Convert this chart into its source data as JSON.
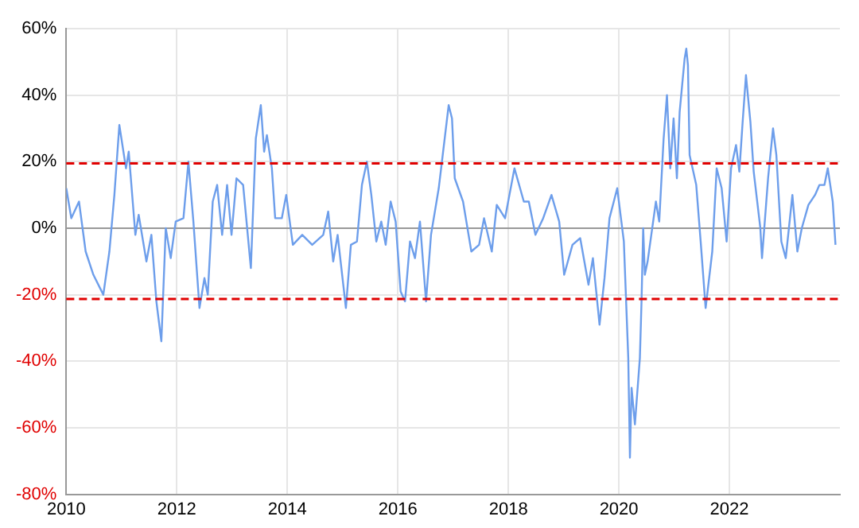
{
  "chart_data": {
    "type": "line",
    "x": [
      2010.0,
      2010.09,
      2010.23,
      2010.35,
      2010.49,
      2010.67,
      2010.78,
      2010.87,
      2010.96,
      2011.08,
      2011.13,
      2011.25,
      2011.31,
      2011.45,
      2011.54,
      2011.63,
      2011.72,
      2011.8,
      2011.89,
      2011.98,
      2012.12,
      2012.21,
      2012.3,
      2012.41,
      2012.5,
      2012.56,
      2012.65,
      2012.73,
      2012.82,
      2012.91,
      2012.99,
      2013.08,
      2013.2,
      2013.34,
      2013.43,
      2013.52,
      2013.58,
      2013.63,
      2013.72,
      2013.78,
      2013.9,
      2013.98,
      2014.1,
      2014.27,
      2014.45,
      2014.65,
      2014.74,
      2014.83,
      2014.91,
      2015.06,
      2015.15,
      2015.26,
      2015.35,
      2015.44,
      2015.52,
      2015.61,
      2015.7,
      2015.78,
      2015.87,
      2015.96,
      2016.05,
      2016.13,
      2016.22,
      2016.31,
      2016.4,
      2016.51,
      2016.6,
      2016.74,
      2016.92,
      2016.98,
      2017.03,
      2017.18,
      2017.33,
      2017.47,
      2017.56,
      2017.7,
      2017.79,
      2017.94,
      2018.11,
      2018.28,
      2018.37,
      2018.49,
      2018.63,
      2018.78,
      2018.92,
      2019.01,
      2019.16,
      2019.3,
      2019.45,
      2019.53,
      2019.65,
      2019.74,
      2019.83,
      2019.97,
      2020.09,
      2020.17,
      2020.2,
      2020.23,
      2020.29,
      2020.38,
      2020.41,
      2020.44,
      2020.47,
      2020.52,
      2020.67,
      2020.73,
      2020.81,
      2020.87,
      2020.93,
      2020.99,
      2021.05,
      2021.1,
      2021.19,
      2021.22,
      2021.25,
      2021.28,
      2021.4,
      2021.48,
      2021.57,
      2021.69,
      2021.77,
      2021.86,
      2021.95,
      2022.03,
      2022.12,
      2022.18,
      2022.24,
      2022.3,
      2022.38,
      2022.44,
      2022.56,
      2022.59,
      2022.7,
      2022.79,
      2022.85,
      2022.94,
      2023.02,
      2023.14,
      2023.23,
      2023.31,
      2023.43,
      2023.55,
      2023.63,
      2023.72,
      2023.78,
      2023.87,
      2023.92
    ],
    "series": [
      {
        "color": "#6d9eeb",
        "values": [
          12,
          3,
          8,
          -7,
          -14,
          -20,
          -7,
          10,
          31,
          18,
          23,
          -2,
          4,
          -10,
          -2,
          -22,
          -34,
          0,
          -9,
          2,
          3,
          20,
          2,
          -24,
          -15,
          -20,
          8,
          13,
          -2,
          13,
          -2,
          15,
          13,
          -12,
          27,
          37,
          23,
          28,
          18,
          3,
          3,
          10,
          -5,
          -2,
          -5,
          -2,
          5,
          -10,
          -2,
          -24,
          -5,
          -4,
          13,
          20,
          10,
          -4,
          2,
          -5,
          8,
          2,
          -19,
          -22,
          -4,
          -9,
          2,
          -22,
          -2,
          12,
          37,
          33,
          15,
          8,
          -7,
          -5,
          3,
          -7,
          7,
          3,
          18,
          8,
          8,
          -2,
          3,
          10,
          2,
          -14,
          -5,
          -3,
          -17,
          -9,
          -29,
          -15,
          3,
          12,
          -4,
          -39,
          -69,
          -48,
          -59,
          -39,
          -22,
          0,
          -14,
          -10,
          8,
          2,
          27,
          40,
          18,
          33,
          15,
          35,
          51,
          54,
          49,
          22,
          13,
          -4,
          -24,
          -7,
          18,
          12,
          -4,
          18,
          25,
          17,
          32,
          46,
          32,
          17,
          0,
          -9,
          15,
          30,
          22,
          -4,
          -9,
          10,
          -7,
          0,
          7,
          10,
          13,
          13,
          18,
          8,
          -5
        ]
      }
    ],
    "xlim": [
      2010,
      2024
    ],
    "xticks": [
      2010,
      2012,
      2014,
      2016,
      2018,
      2020,
      2022
    ],
    "ylim": [
      -80,
      60
    ],
    "yticks": [
      {
        "value": -80,
        "label": "-80%"
      },
      {
        "value": -60,
        "label": "-60%"
      },
      {
        "value": -40,
        "label": "-40%"
      },
      {
        "value": -20,
        "label": "-20%"
      },
      {
        "value": 0,
        "label": "0%"
      },
      {
        "value": 20,
        "label": "20%"
      },
      {
        "value": 40,
        "label": "40%"
      },
      {
        "value": 60,
        "label": "60%"
      }
    ],
    "ref_lines": [
      {
        "axis": "y",
        "value": 19.5,
        "color": "#e00000",
        "line_style": "dashed"
      },
      {
        "axis": "y",
        "value": -21.3,
        "color": "#e00000",
        "line_style": "dashed"
      }
    ],
    "grid": true,
    "legend": false,
    "marker": "none",
    "line_style": "solid"
  }
}
